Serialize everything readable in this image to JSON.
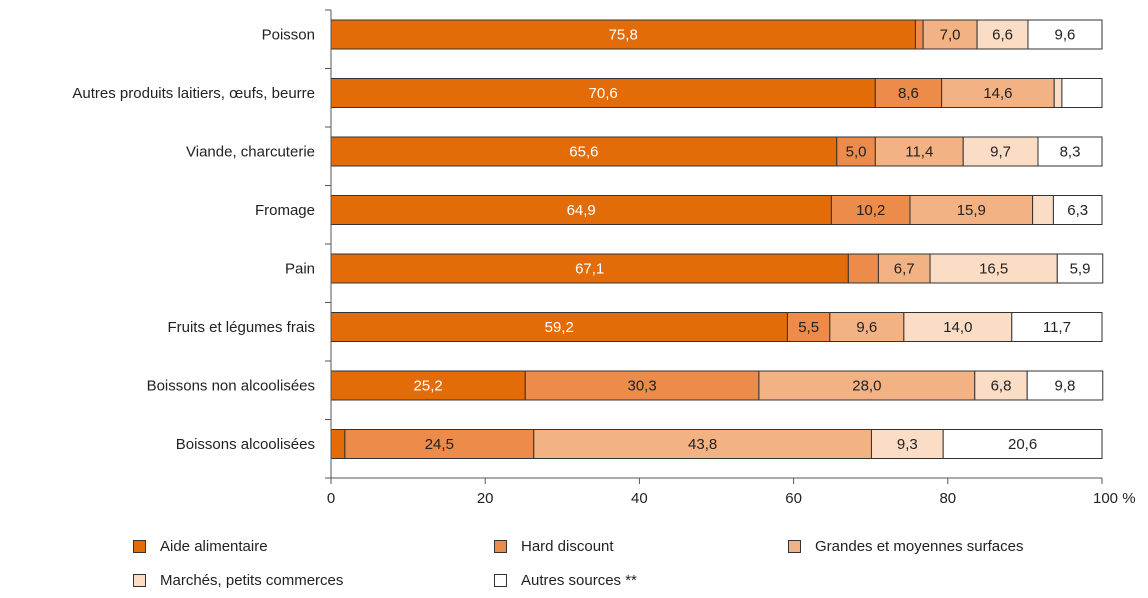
{
  "chart_data": {
    "type": "bar",
    "orientation": "horizontal",
    "stacked": true,
    "categories": [
      "Poisson",
      "Autres produits laitiers, œufs, beurre",
      "Viande, charcuterie",
      "Fromage",
      "Pain",
      "Fruits et légumes frais",
      "Boissons non alcoolisées",
      "Boissons alcoolisées"
    ],
    "series": [
      {
        "name": "Aide alimentaire",
        "color": "#e36c09",
        "values": [
          75.8,
          70.6,
          65.6,
          64.9,
          67.1,
          59.2,
          25.2,
          1.8
        ],
        "labels": [
          "75,8",
          "70,6",
          "65,6",
          "64,9",
          "67,1",
          "59,2",
          "25,2",
          ""
        ]
      },
      {
        "name": "Hard discount",
        "color": "#ec8b4a",
        "values": [
          1.0,
          8.6,
          5.0,
          10.2,
          3.9,
          5.5,
          30.3,
          24.5
        ],
        "labels": [
          "",
          "8,6",
          "5,0",
          "10,2",
          "",
          "5,5",
          "30,3",
          "24,5"
        ]
      },
      {
        "name": "Grandes et moyennes surfaces",
        "color": "#f3b283",
        "values": [
          7.0,
          14.6,
          11.4,
          15.9,
          6.7,
          9.6,
          28.0,
          43.8
        ],
        "labels": [
          "7,0",
          "14,6",
          "11,4",
          "15,9",
          "6,7",
          "9,6",
          "28,0",
          "43,8"
        ]
      },
      {
        "name": "Marchés, petits commerces",
        "color": "#fbdcc4",
        "values": [
          6.6,
          1.0,
          9.7,
          2.7,
          16.5,
          14.0,
          6.8,
          9.3
        ],
        "labels": [
          "6,6",
          "",
          "9,7",
          "",
          "16,5",
          "14,0",
          "6,8",
          "9,3"
        ]
      },
      {
        "name": "Autres sources **",
        "color": "#ffffff",
        "values": [
          9.6,
          5.2,
          8.3,
          6.3,
          5.9,
          11.7,
          9.8,
          20.6
        ],
        "labels": [
          "9,6",
          "",
          "8,3",
          "6,3",
          "5,9",
          "11,7",
          "9,8",
          "20,6"
        ]
      }
    ],
    "x_ticks": [
      "0",
      "20",
      "40",
      "60",
      "80",
      "100 %"
    ],
    "xlim": [
      0,
      100
    ],
    "grid": false,
    "legend_position": "bottom"
  }
}
